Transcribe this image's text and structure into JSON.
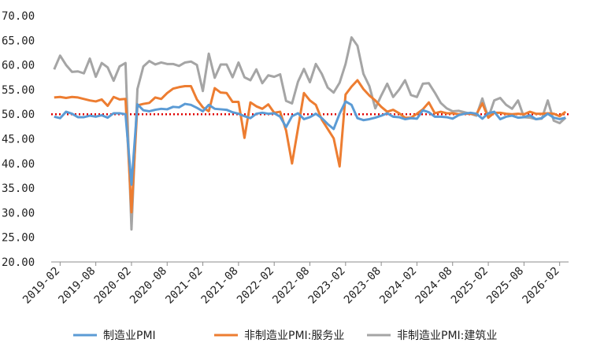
{
  "chart_data": {
    "type": "line",
    "title": "",
    "xlabel": "",
    "ylabel": "",
    "ylim": [
      20,
      70
    ],
    "yticks": [
      "20.00",
      "25.00",
      "30.00",
      "35.00",
      "40.00",
      "45.00",
      "50.00",
      "55.00",
      "60.00",
      "65.00",
      "70.00"
    ],
    "x_tick_labels": [
      "2019-02",
      "2019-08",
      "2020-02",
      "2020-08",
      "2021-02",
      "2021-08",
      "2022-02",
      "2022-08",
      "2023-02",
      "2023-08",
      "2024-02",
      "2024-08",
      "2025-02",
      "2025-08",
      "2026-02"
    ],
    "x": [
      "2019-01",
      "2019-02",
      "2019-03",
      "2019-04",
      "2019-05",
      "2019-06",
      "2019-07",
      "2019-08",
      "2019-09",
      "2019-10",
      "2019-11",
      "2019-12",
      "2020-01",
      "2020-02",
      "2020-03",
      "2020-04",
      "2020-05",
      "2020-06",
      "2020-07",
      "2020-08",
      "2020-09",
      "2020-10",
      "2020-11",
      "2020-12",
      "2021-01",
      "2021-02",
      "2021-03",
      "2021-04",
      "2021-05",
      "2021-06",
      "2021-07",
      "2021-08",
      "2021-09",
      "2021-10",
      "2021-11",
      "2021-12",
      "2022-01",
      "2022-02",
      "2022-03",
      "2022-04",
      "2022-05",
      "2022-06",
      "2022-07",
      "2022-08",
      "2022-09",
      "2022-10",
      "2022-11",
      "2022-12",
      "2023-01",
      "2023-02",
      "2023-03",
      "2023-04",
      "2023-05",
      "2023-06",
      "2023-07",
      "2023-08",
      "2023-09",
      "2023-10",
      "2023-11",
      "2023-12",
      "2024-01",
      "2024-02",
      "2024-03",
      "2024-04",
      "2024-05",
      "2024-06",
      "2024-07",
      "2024-08",
      "2024-09",
      "2024-10",
      "2024-11",
      "2024-12",
      "2025-01",
      "2025-02",
      "2025-03",
      "2025-04",
      "2025-05",
      "2025-06",
      "2025-07",
      "2025-08",
      "2025-09",
      "2025-10",
      "2025-11",
      "2025-12",
      "2026-01",
      "2026-02",
      "2026-03"
    ],
    "series": [
      {
        "name": "制造业PMI",
        "color": "#5b9bd5",
        "values": [
          49.5,
          49.2,
          50.5,
          50.1,
          49.4,
          49.4,
          49.7,
          49.5,
          49.8,
          49.3,
          50.2,
          50.2,
          50.0,
          35.7,
          52.0,
          50.8,
          50.6,
          50.9,
          51.1,
          51.0,
          51.5,
          51.4,
          52.1,
          51.9,
          51.3,
          50.6,
          51.9,
          51.1,
          51.0,
          50.9,
          50.4,
          50.1,
          49.6,
          49.2,
          50.1,
          50.3,
          50.1,
          50.2,
          49.5,
          47.4,
          49.6,
          50.2,
          49.0,
          49.4,
          50.1,
          49.2,
          48.0,
          47.0,
          50.1,
          52.6,
          51.9,
          49.2,
          48.8,
          49.0,
          49.3,
          49.7,
          50.2,
          49.5,
          49.4,
          49.0,
          49.2,
          49.1,
          50.8,
          50.4,
          49.5,
          49.5,
          49.4,
          49.1,
          49.8,
          50.1,
          50.3,
          50.1,
          49.1,
          50.2,
          50.5,
          49.0,
          49.5,
          49.7,
          49.3,
          49.4,
          49.8,
          49.0,
          49.2,
          50.1,
          49.3,
          49.0,
          49.3
        ]
      },
      {
        "name": "非制造业PMI:服务业",
        "color": "#ed7d31",
        "values": [
          53.4,
          53.5,
          53.3,
          53.5,
          53.4,
          53.1,
          52.8,
          52.6,
          53.0,
          51.7,
          53.5,
          53.0,
          53.1,
          30.1,
          51.8,
          52.1,
          52.3,
          53.4,
          53.1,
          54.3,
          55.2,
          55.5,
          55.7,
          55.7,
          53.0,
          51.4,
          50.6,
          55.3,
          54.4,
          54.3,
          52.5,
          52.5,
          45.2,
          52.4,
          51.6,
          51.1,
          52.0,
          50.3,
          50.5,
          46.7,
          40.0,
          47.1,
          54.3,
          52.8,
          51.9,
          48.9,
          47.0,
          45.1,
          39.4,
          54.0,
          55.6,
          56.9,
          55.1,
          53.8,
          52.8,
          51.5,
          50.5,
          50.9,
          50.2,
          49.3,
          49.3,
          50.1,
          51.0,
          52.4,
          50.2,
          50.5,
          50.2,
          50.2,
          50.0,
          50.1,
          50.1,
          50.0,
          52.2,
          49.3,
          50.3,
          50.3,
          50.1,
          50.0,
          50.1,
          50.0,
          50.5,
          50.1,
          50.1,
          50.2,
          50.1,
          49.6,
          50.5
        ]
      },
      {
        "name": "非制造业PMI:建筑业",
        "color": "#a5a5a5",
        "values": [
          59.1,
          61.9,
          60.0,
          58.6,
          58.7,
          58.3,
          61.3,
          57.6,
          60.4,
          59.5,
          56.8,
          59.7,
          60.4,
          26.6,
          55.1,
          59.7,
          60.8,
          60.1,
          60.5,
          60.2,
          60.2,
          59.8,
          60.5,
          60.7,
          60.0,
          54.7,
          62.3,
          57.4,
          60.1,
          60.1,
          57.5,
          60.5,
          57.5,
          56.9,
          59.1,
          56.3,
          57.9,
          57.6,
          58.1,
          52.7,
          52.2,
          56.6,
          59.2,
          56.5,
          60.2,
          58.2,
          55.4,
          54.4,
          56.4,
          60.2,
          65.6,
          63.9,
          58.2,
          55.7,
          51.2,
          53.8,
          56.2,
          53.5,
          55.0,
          56.9,
          53.9,
          53.5,
          56.2,
          56.3,
          54.4,
          52.3,
          51.2,
          50.6,
          50.7,
          50.4,
          50.1,
          49.7,
          53.2,
          49.3,
          52.8,
          53.3,
          51.9,
          51.1,
          52.8,
          49.4,
          49.3,
          49.0,
          49.1,
          52.8,
          48.7,
          48.2,
          49.3
        ]
      }
    ],
    "reference_line": {
      "y": 50,
      "color": "#e00000",
      "style": "dotted"
    },
    "grid": false,
    "legend": "bottom"
  }
}
